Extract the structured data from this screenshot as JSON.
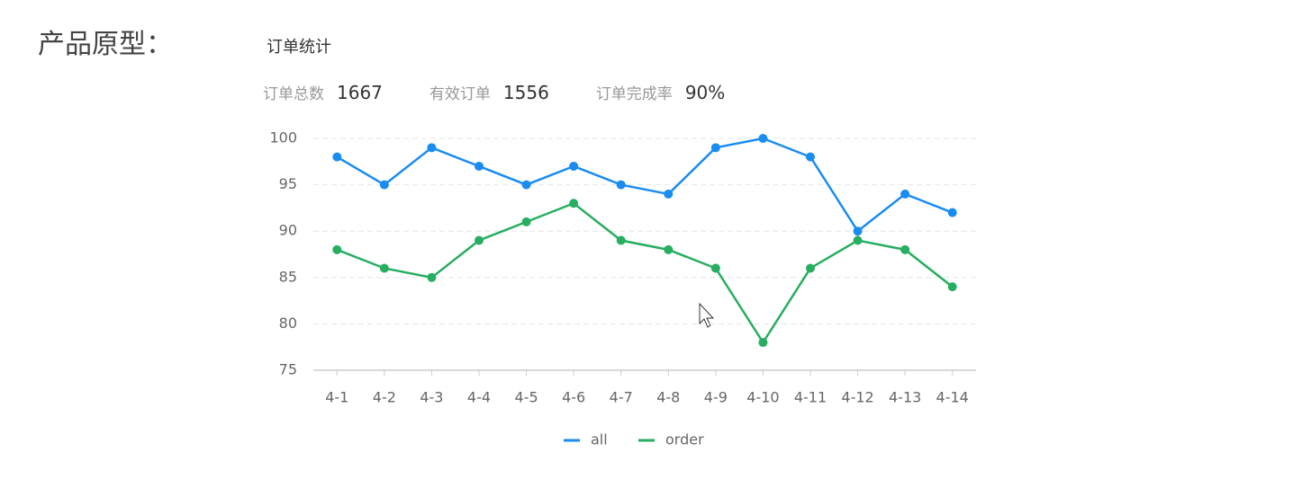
{
  "page": {
    "heading": "产品原型：",
    "card_title": "订单统计",
    "stats": [
      {
        "label": "订单总数",
        "value": "1667"
      },
      {
        "label": "有效订单",
        "value": "1556"
      },
      {
        "label": "订单完成率",
        "value": "90%"
      }
    ]
  },
  "chart_data": {
    "type": "line",
    "categories": [
      "4-1",
      "4-2",
      "4-3",
      "4-4",
      "4-5",
      "4-6",
      "4-7",
      "4-8",
      "4-9",
      "4-10",
      "4-11",
      "4-12",
      "4-13",
      "4-14"
    ],
    "series": [
      {
        "name": "all",
        "color": "#1a8cf0",
        "values": [
          98,
          95,
          99,
          97,
          95,
          97,
          95,
          94,
          99,
          100,
          98,
          90,
          94,
          92
        ]
      },
      {
        "name": "order",
        "color": "#27ae60",
        "values": [
          88,
          86,
          85,
          89,
          91,
          93,
          89,
          88,
          86,
          78,
          86,
          89,
          88,
          84
        ]
      }
    ],
    "ylim": [
      75,
      100
    ],
    "yticks": [
      75,
      80,
      85,
      90,
      95,
      100
    ],
    "grid": true,
    "legend": "bottom"
  }
}
